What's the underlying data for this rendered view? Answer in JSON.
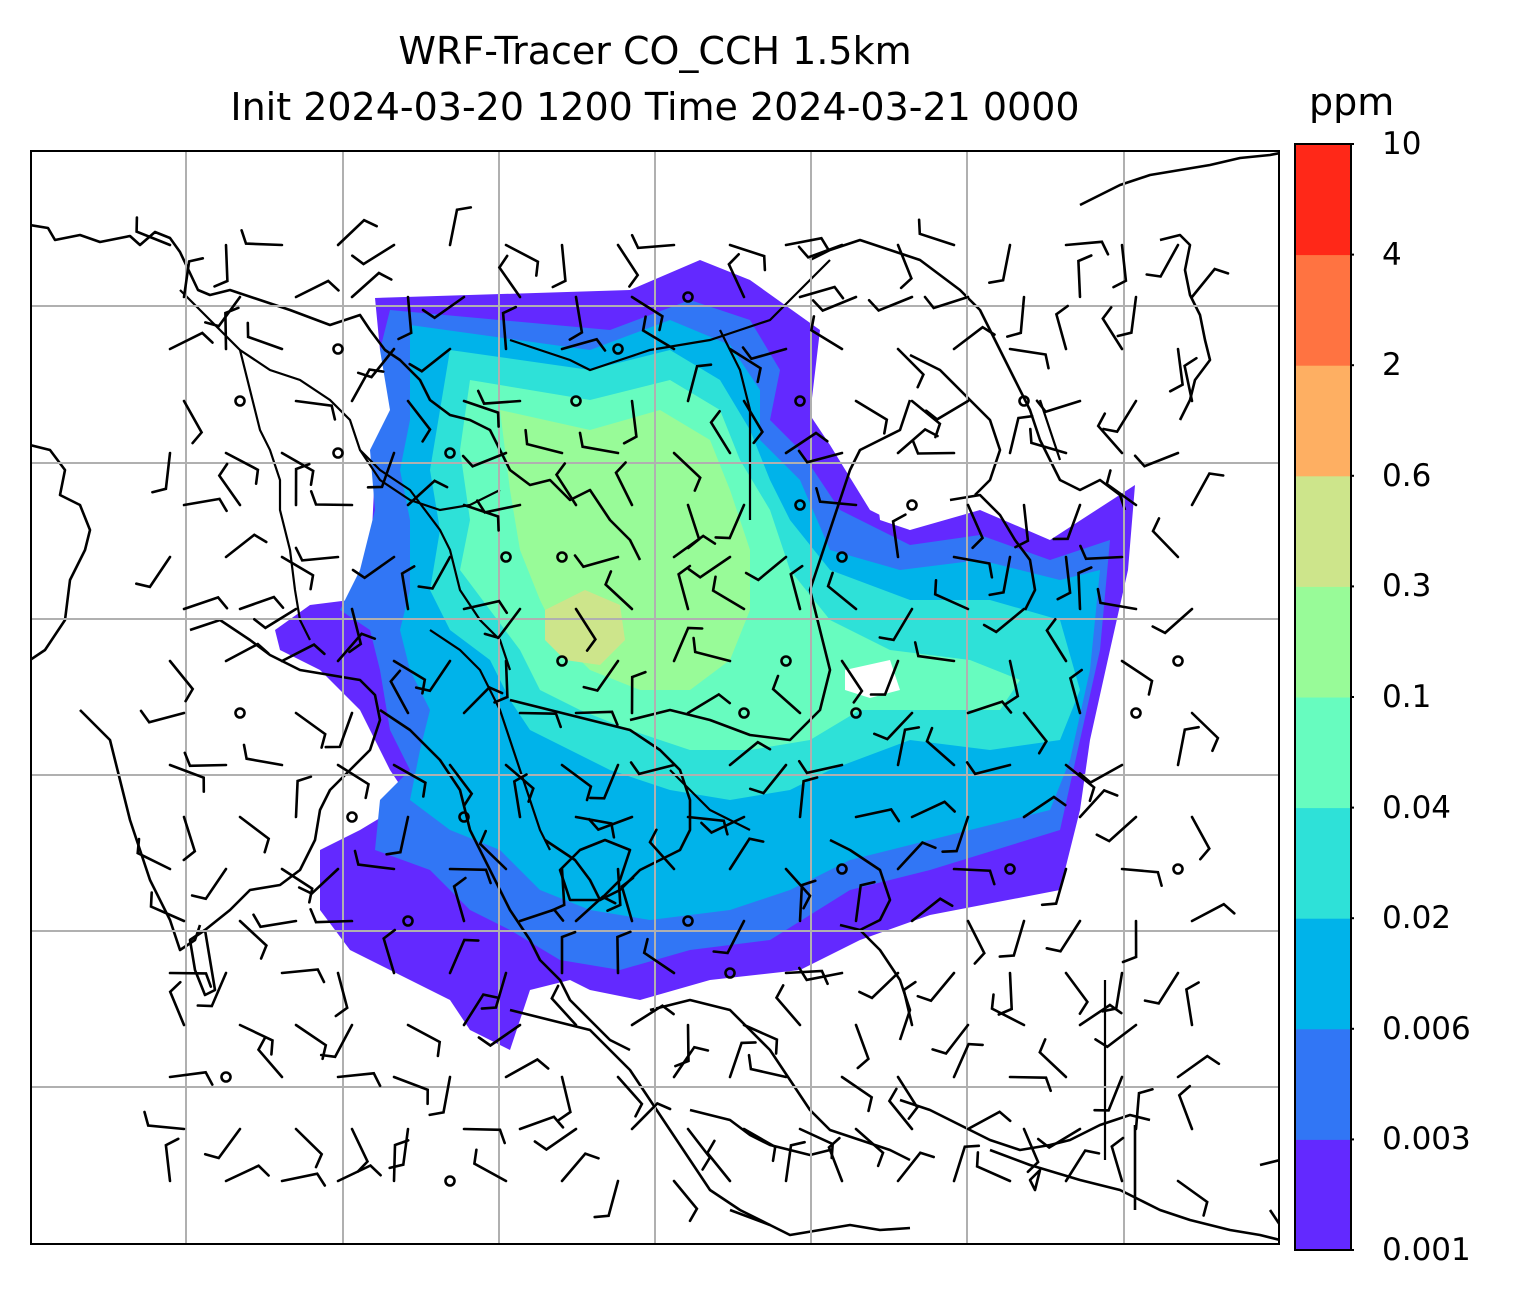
{
  "title": {
    "line1": "WRF-Tracer CO_CCH 1.5km",
    "line2": "Init 2024-03-20 1200 Time 2024-03-21 0000"
  },
  "colorbar": {
    "unit": "ppm",
    "levels": [
      "0.001",
      "0.003",
      "0.006",
      "0.02",
      "0.04",
      "0.1",
      "0.3",
      "0.6",
      "2",
      "4",
      "10"
    ],
    "colors": [
      "#6329ff",
      "#3176f5",
      "#00b3ea",
      "#2ee1d8",
      "#67fcbf",
      "#98fb98",
      "#cde58b",
      "#feaf62",
      "#ff7341",
      "#ff2818"
    ]
  },
  "map": {
    "gridlines": true,
    "coastline_color": "#000000",
    "grid_color": "#b0b0b0",
    "wind_barbs": true
  }
}
